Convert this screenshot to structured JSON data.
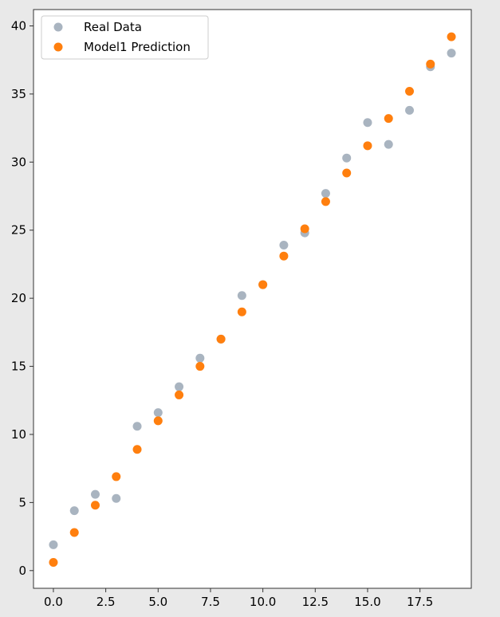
{
  "chart_data": {
    "type": "scatter",
    "title": "",
    "xlabel": "",
    "ylabel": "",
    "xlim": [
      -0.95,
      19.95
    ],
    "ylim": [
      -1.3,
      41.2
    ],
    "xticks": [
      0.0,
      2.5,
      5.0,
      7.5,
      10.0,
      12.5,
      15.0,
      17.5
    ],
    "xtick_labels": [
      "0.0",
      "2.5",
      "5.0",
      "7.5",
      "10.0",
      "12.5",
      "15.0",
      "17.5"
    ],
    "yticks": [
      0,
      5,
      10,
      15,
      20,
      25,
      30,
      35,
      40
    ],
    "ytick_labels": [
      "0",
      "5",
      "10",
      "15",
      "20",
      "25",
      "30",
      "35",
      "40"
    ],
    "grid": false,
    "legend_position": "top-left",
    "series": [
      {
        "name": "Real Data",
        "color": "#a9b4c0",
        "x": [
          0,
          1,
          2,
          3,
          4,
          5,
          6,
          7,
          8,
          9,
          10,
          11,
          12,
          13,
          14,
          15,
          16,
          17,
          18,
          19
        ],
        "y": [
          1.9,
          4.4,
          5.6,
          5.3,
          10.6,
          11.6,
          13.5,
          15.6,
          17.0,
          20.2,
          21.0,
          23.9,
          24.8,
          27.7,
          30.3,
          32.9,
          31.3,
          33.8,
          37.0,
          38.0
        ]
      },
      {
        "name": "Model1 Prediction",
        "color": "#ff7f0e",
        "x": [
          0,
          1,
          2,
          3,
          4,
          5,
          6,
          7,
          8,
          9,
          10,
          11,
          12,
          13,
          14,
          15,
          16,
          17,
          18,
          19
        ],
        "y": [
          0.6,
          2.8,
          4.8,
          6.9,
          8.9,
          11.0,
          12.9,
          15.0,
          17.0,
          19.0,
          21.0,
          23.1,
          25.1,
          27.1,
          29.2,
          31.2,
          33.2,
          35.2,
          37.2,
          39.2
        ]
      }
    ]
  }
}
